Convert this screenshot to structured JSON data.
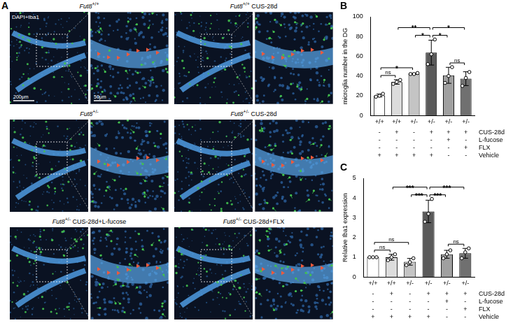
{
  "panel_a": {
    "letter": "A",
    "stain": "DAPI+Iba1",
    "scale_bars": [
      "200μm",
      "50μm"
    ],
    "images": [
      {
        "gene": "Fut8",
        "genotype": "+/+"
      },
      {
        "gene": "Fut8",
        "genotype": "+/+",
        "treatment": "CUS-28d"
      },
      {
        "gene": "Fut8",
        "genotype": "+/-"
      },
      {
        "gene": "Fut8",
        "genotype": "+/-",
        "treatment": "CUS-28d"
      },
      {
        "gene": "Fut8",
        "genotype": "+/-",
        "treatment": "CUS-28d+L-fucose"
      },
      {
        "gene": "Fut8",
        "genotype": "+/-",
        "treatment": "CUS-28d+FLX"
      }
    ]
  },
  "chart_data": [
    {
      "type": "bar",
      "letter": "B",
      "y_label": "microglia number in the DG",
      "categories": [
        "+/+",
        "+/+",
        "+/-",
        "+/-",
        "+/-",
        "+/-"
      ],
      "values": [
        20.3,
        34,
        42.3,
        63.7,
        40.7,
        37.3
      ],
      "error": [
        1.5,
        2.3,
        0.6,
        12.6,
        8.1,
        7.0
      ],
      "points": [
        [
          19,
          20,
          22
        ],
        [
          32,
          34,
          36
        ],
        [
          42,
          42,
          43
        ],
        [
          52,
          62,
          77
        ],
        [
          33,
          40,
          49
        ],
        [
          30,
          38,
          44
        ]
      ],
      "colors": [
        "#ffffff",
        "#dcdcdc",
        "#c4c4c4",
        "#5a5a5a",
        "#a0a0a0",
        "#707070"
      ],
      "ylim": [
        0,
        100
      ],
      "yticks": [
        0,
        20,
        40,
        60,
        80,
        100
      ],
      "grid": false,
      "annotations": [
        {
          "from": 0,
          "to": 1,
          "label": "ns"
        },
        {
          "from": 0,
          "to": 2,
          "label": "*"
        },
        {
          "from": 1,
          "to": 3,
          "label": "**"
        },
        {
          "from": 2,
          "to": 3,
          "label": "*"
        },
        {
          "from": 3,
          "to": 4,
          "label": "*"
        },
        {
          "from": 3,
          "to": 5,
          "label": "*"
        },
        {
          "from": 4,
          "to": 5,
          "label": "ns"
        }
      ],
      "conditions": [
        {
          "label": "CUS-28d",
          "marks": [
            "-",
            "+",
            "-",
            "+",
            "+",
            "+"
          ]
        },
        {
          "label": "L-fucose",
          "marks": [
            "-",
            "-",
            "-",
            "-",
            "+",
            "-"
          ]
        },
        {
          "label": "FLX",
          "marks": [
            "-",
            "-",
            "-",
            "-",
            "-",
            "+"
          ]
        },
        {
          "label": "Vehicle",
          "marks": [
            "+",
            "+",
            "+",
            "+",
            "-",
            "-"
          ]
        }
      ]
    },
    {
      "type": "bar",
      "letter": "C",
      "y_label": "Relative Iba1 expression",
      "categories": [
        "+/+",
        "+/+",
        "+/-",
        "+/-",
        "+/-",
        "+/-"
      ],
      "values": [
        1.0,
        1.0,
        0.77,
        3.32,
        1.15,
        1.2
      ],
      "error": [
        0,
        0.15,
        0.17,
        0.57,
        0.2,
        0.25
      ],
      "points": [
        [
          1,
          1,
          1
        ],
        [
          0.85,
          1.0,
          1.15
        ],
        [
          0.6,
          0.75,
          0.95
        ],
        [
          2.8,
          3.2,
          3.95
        ],
        [
          0.95,
          1.15,
          1.35
        ],
        [
          0.95,
          1.25,
          1.45
        ]
      ],
      "colors": [
        "#ffffff",
        "#dcdcdc",
        "#c4c4c4",
        "#5a5a5a",
        "#a0a0a0",
        "#707070"
      ],
      "ylim": [
        0,
        5
      ],
      "yticks": [
        0,
        1,
        2,
        3,
        4,
        5
      ],
      "grid": false,
      "annotations": [
        {
          "from": 0,
          "to": 1,
          "label": "ns"
        },
        {
          "from": 0,
          "to": 2,
          "label": "ns"
        },
        {
          "from": 1,
          "to": 3,
          "label": "***"
        },
        {
          "from": 2,
          "to": 3,
          "label": "***"
        },
        {
          "from": 3,
          "to": 4,
          "label": "***"
        },
        {
          "from": 3,
          "to": 5,
          "label": "***"
        },
        {
          "from": 4,
          "to": 5,
          "label": "ns"
        }
      ],
      "conditions": [
        {
          "label": "CUS-28d",
          "marks": [
            "-",
            "+",
            "-",
            "+",
            "+",
            "+"
          ]
        },
        {
          "label": "L-fucose",
          "marks": [
            "-",
            "-",
            "-",
            "-",
            "+",
            "-"
          ]
        },
        {
          "label": "FLX",
          "marks": [
            "-",
            "-",
            "-",
            "-",
            "-",
            "+"
          ]
        },
        {
          "label": "Vehicle",
          "marks": [
            "+",
            "+",
            "+",
            "+",
            "-",
            "-"
          ]
        }
      ]
    }
  ]
}
